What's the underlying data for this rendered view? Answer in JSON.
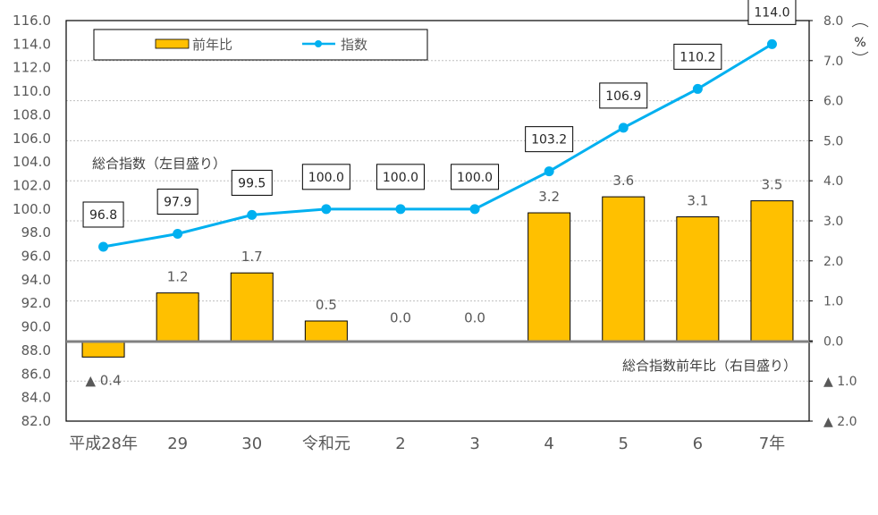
{
  "chart_data": {
    "type": "bar+line",
    "title": "",
    "categories": [
      "平成28年",
      "29",
      "30",
      "令和元",
      "2",
      "3",
      "4",
      "5",
      "6",
      "7年"
    ],
    "series": [
      {
        "name": "前年比",
        "type": "bar",
        "axis": "right",
        "color": "#FFC000",
        "values": [
          -0.4,
          1.2,
          1.7,
          0.5,
          0.0,
          0.0,
          3.2,
          3.6,
          3.1,
          3.5
        ],
        "labels": [
          "▲ 0.4",
          "1.2",
          "1.7",
          "0.5",
          "0.0",
          "0.0",
          "3.2",
          "3.6",
          "3.1",
          "3.5"
        ]
      },
      {
        "name": "指数",
        "type": "line",
        "axis": "left",
        "color": "#00B0F0",
        "values": [
          96.8,
          97.9,
          99.5,
          100.0,
          100.0,
          100.0,
          103.2,
          106.9,
          110.2,
          114.0
        ],
        "labels": [
          "96.8",
          "97.9",
          "99.5",
          "100.0",
          "100.0",
          "100.0",
          "103.2",
          "106.9",
          "110.2",
          "114.0"
        ]
      }
    ],
    "left_axis": {
      "ylim": [
        82.0,
        116.0
      ],
      "step": 2.0,
      "ticks": [
        "116.0",
        "114.0",
        "112.0",
        "110.0",
        "108.0",
        "106.0",
        "104.0",
        "102.0",
        "100.0",
        "98.0",
        "96.0",
        "94.0",
        "92.0",
        "90.0",
        "88.0",
        "86.0",
        "84.0",
        "82.0"
      ],
      "annotation": "総合指数（左目盛り）"
    },
    "right_axis": {
      "ylim": [
        -2.0,
        8.0
      ],
      "step": 1.0,
      "ticks": [
        "8.0",
        "7.0",
        "6.0",
        "5.0",
        "4.0",
        "3.0",
        "2.0",
        "1.0",
        "0.0",
        "▲ 1.0",
        "▲ 2.0"
      ],
      "unit": "%",
      "annotation": "総合指数前年比（右目盛り）"
    },
    "legend": {
      "position": "top-left-inside",
      "entries": [
        "前年比",
        "指数"
      ]
    },
    "grid": "horizontal dotted"
  }
}
